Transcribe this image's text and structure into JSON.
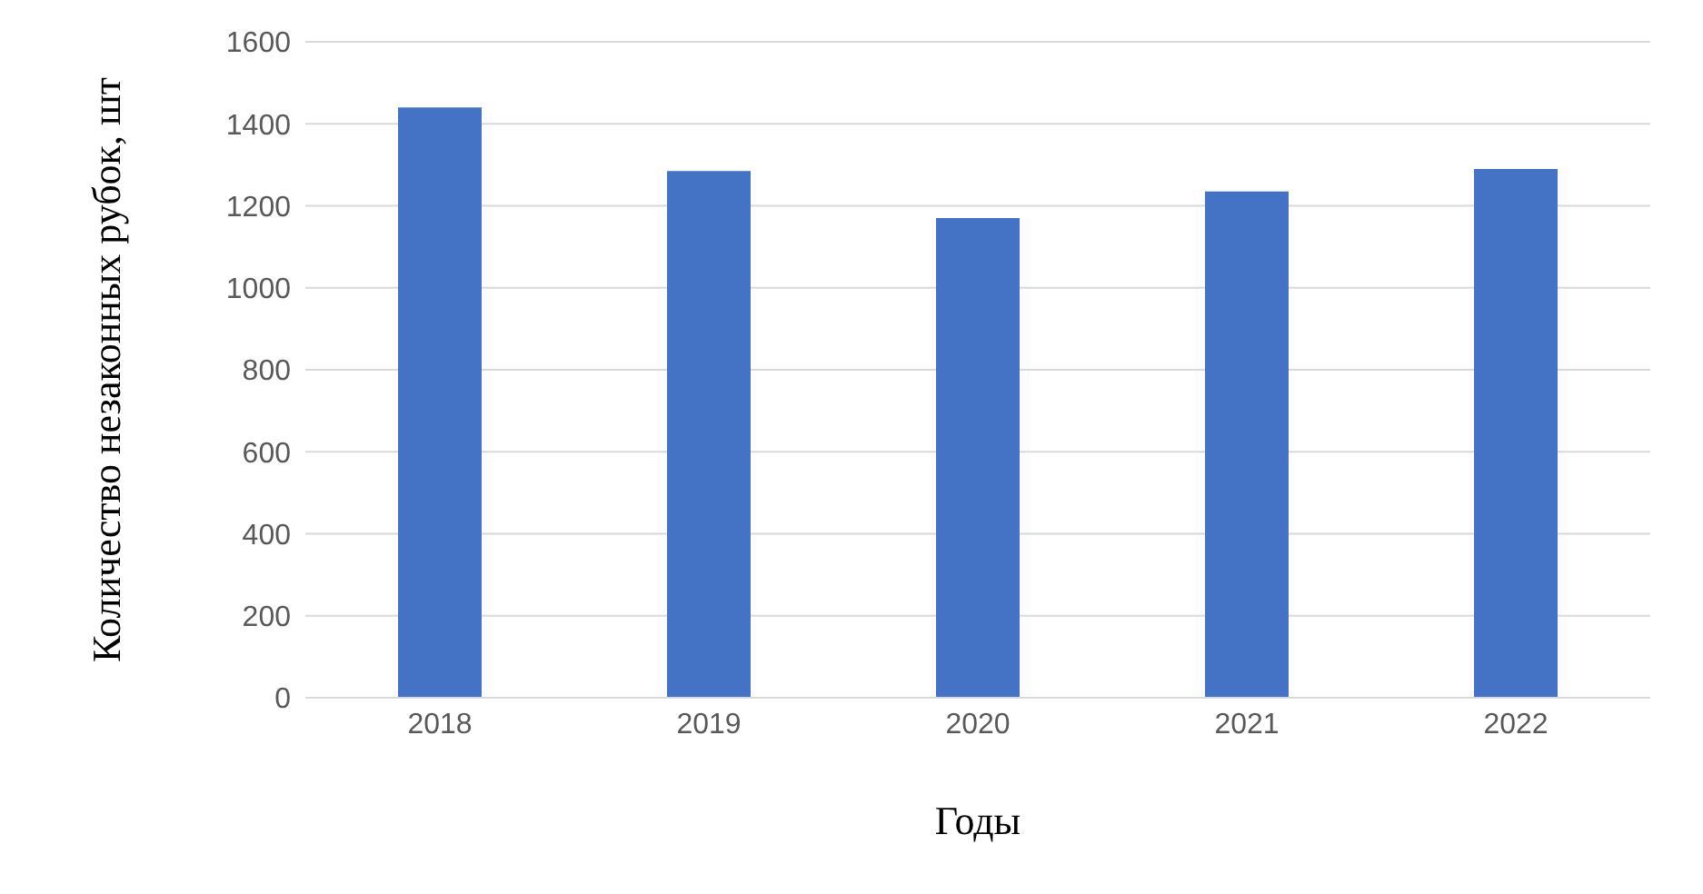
{
  "chart_data": {
    "type": "bar",
    "xlabel": "Годы",
    "ylabel": "Количество незаконных рубок, шт",
    "categories": [
      "2018",
      "2019",
      "2020",
      "2021",
      "2022"
    ],
    "values": [
      1440,
      1285,
      1170,
      1235,
      1290
    ],
    "color": "#4472c4",
    "ylim": [
      0,
      1600
    ],
    "yticks": [
      0,
      200,
      400,
      600,
      800,
      1000,
      1200,
      1400,
      1600
    ],
    "grid": "y"
  }
}
